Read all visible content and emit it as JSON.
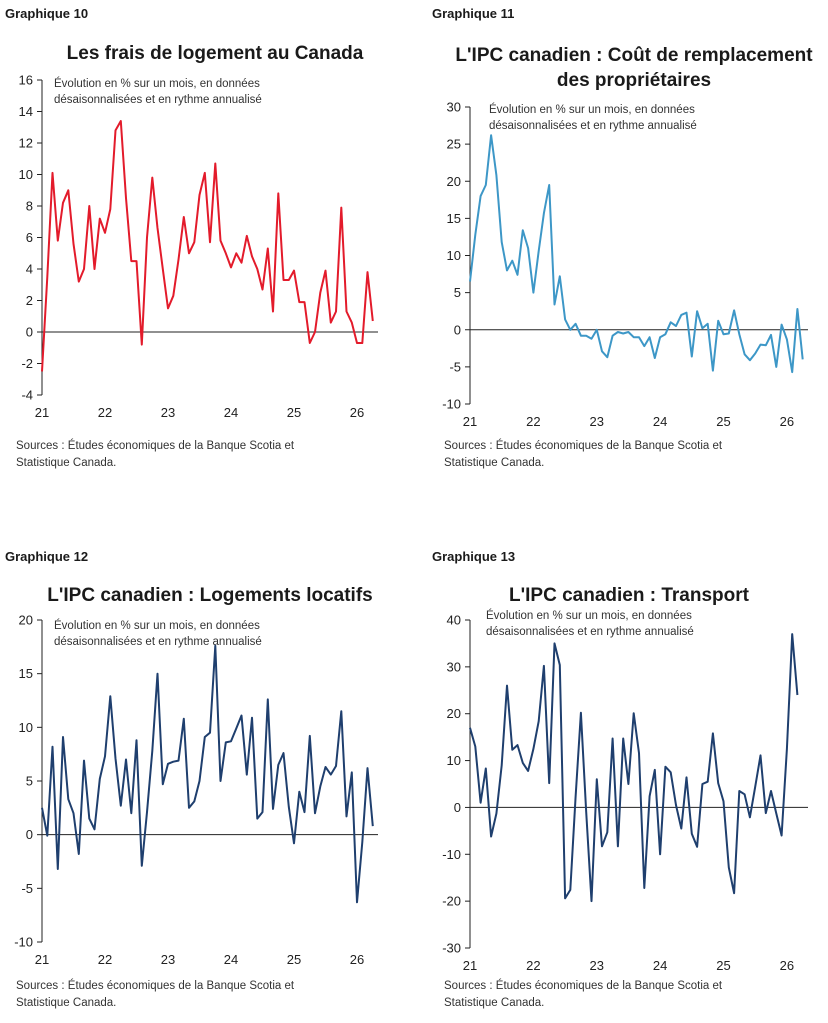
{
  "charts": [
    {
      "graphique_label": "Graphique 10",
      "title": "Les frais de logement au Canada",
      "note": "Évolution en % sur un mois, en données désaisonnalisées et en rythme annualisé",
      "source": "Sources : Études économiques de la Banque Scotia et Statistique Canada.",
      "color": "#e31b2b"
    },
    {
      "graphique_label": "Graphique 11",
      "title": "L'IPC canadien : Coût de remplacement des propriétaires",
      "note": "Évolution en % sur un mois, en données désaisonnalisées et en rythme annualisé",
      "source": "Sources : Études économiques de la Banque Scotia et Statistique Canada.",
      "color": "#3d97c7"
    },
    {
      "graphique_label": "Graphique 12",
      "title": "L'IPC canadien : Logements locatifs",
      "note": "Évolution en % sur un mois, en données désaisonnalisées et en rythme annualisé",
      "source": "Sources : Études économiques de la Banque Scotia et Statistique Canada.",
      "color": "#1f3f6e"
    },
    {
      "graphique_label": "Graphique 13",
      "title": "L'IPC canadien : Transport",
      "note": "Évolution en % sur un mois, en données désaisonnalisées et en rythme annualisé",
      "source": "Sources : Études économiques de la Banque Scotia et Statistique Canada.",
      "color": "#1f3f6e"
    }
  ],
  "chart_data": [
    {
      "type": "line",
      "title": "Les frais de logement au Canada",
      "ylim": [
        -4,
        16
      ],
      "yticks": [
        -4,
        -2,
        0,
        2,
        4,
        6,
        8,
        10,
        12,
        14,
        16
      ],
      "xticks": [
        {
          "label": "21",
          "x": 0
        },
        {
          "label": "22",
          "x": 12
        },
        {
          "label": "23",
          "x": 24
        },
        {
          "label": "24",
          "x": 36
        },
        {
          "label": "25",
          "x": 48
        },
        {
          "label": "26",
          "x": 60
        }
      ],
      "xlim": [
        0,
        64
      ],
      "x_start": 0,
      "grid": false,
      "series": [
        {
          "values": [
            -2.5,
            3.5,
            10.1,
            5.8,
            8.2,
            9.0,
            5.6,
            3.2,
            4.0,
            8.0,
            4.0,
            7.2,
            6.3,
            7.8,
            12.8,
            13.4,
            8.5,
            4.5,
            4.5,
            -0.8,
            6.0,
            9.8,
            6.6,
            4.0,
            1.5,
            2.3,
            4.6,
            7.3,
            5.0,
            5.7,
            8.7,
            10.1,
            5.7,
            10.7,
            5.8,
            5.0,
            4.1,
            5.0,
            4.4,
            6.1,
            4.8,
            4.0,
            2.7,
            5.3,
            1.3,
            8.8,
            3.3,
            3.3,
            3.9,
            1.9,
            1.9,
            -0.7,
            0.0,
            2.5,
            3.9,
            0.6,
            1.3,
            7.9,
            1.3,
            0.6,
            -0.7,
            -0.7,
            3.8,
            0.7
          ]
        }
      ]
    },
    {
      "type": "line",
      "title": "L'IPC canadien : Coût de remplacement des propriétaires",
      "ylim": [
        -10,
        30
      ],
      "yticks": [
        -10,
        -5,
        0,
        5,
        10,
        15,
        20,
        25,
        30
      ],
      "xticks": [
        {
          "label": "21",
          "x": 0
        },
        {
          "label": "22",
          "x": 12
        },
        {
          "label": "23",
          "x": 24
        },
        {
          "label": "24",
          "x": 36
        },
        {
          "label": "25",
          "x": 48
        },
        {
          "label": "26",
          "x": 60
        }
      ],
      "xlim": [
        0,
        64
      ],
      "x_start": 0,
      "grid": false,
      "series": [
        {
          "values": [
            6.5,
            12.8,
            18.0,
            19.5,
            26.2,
            20.8,
            11.8,
            8.0,
            9.3,
            7.4,
            13.4,
            11.0,
            5.0,
            10.6,
            15.7,
            19.5,
            3.4,
            7.2,
            1.4,
            0.0,
            0.8,
            -0.8,
            -0.8,
            -1.2,
            0.0,
            -2.9,
            -3.7,
            -0.8,
            -0.3,
            -0.5,
            -0.3,
            -1.0,
            -1.0,
            -2.2,
            -1.0,
            -3.8,
            -1.0,
            -0.6,
            1.0,
            0.5,
            2.0,
            2.3,
            -3.6,
            2.5,
            0.2,
            0.8,
            -5.5,
            1.2,
            -0.6,
            -0.5,
            2.6,
            -0.6,
            -3.3,
            -4.1,
            -3.2,
            -2.0,
            -2.1,
            -0.7,
            -5.0,
            0.7,
            -1.3,
            -5.7,
            2.8,
            -4.0
          ]
        }
      ]
    },
    {
      "type": "line",
      "title": "L'IPC canadien : Logements locatifs",
      "ylim": [
        -10,
        20
      ],
      "yticks": [
        -10,
        -5,
        0,
        5,
        10,
        15,
        20
      ],
      "xticks": [
        {
          "label": "21",
          "x": 0
        },
        {
          "label": "22",
          "x": 12
        },
        {
          "label": "23",
          "x": 24
        },
        {
          "label": "24",
          "x": 36
        },
        {
          "label": "25",
          "x": 48
        },
        {
          "label": "26",
          "x": 60
        }
      ],
      "xlim": [
        0,
        64
      ],
      "x_start": 0,
      "grid": false,
      "series": [
        {
          "values": [
            2.5,
            -0.1,
            8.2,
            -3.2,
            9.1,
            3.3,
            2.0,
            -1.8,
            6.9,
            1.5,
            0.5,
            5.2,
            7.3,
            12.9,
            7.1,
            2.7,
            7.0,
            2.0,
            8.8,
            -2.9,
            2.1,
            7.8,
            15.0,
            4.7,
            6.6,
            6.8,
            6.9,
            10.8,
            2.5,
            3.1,
            5.0,
            9.1,
            9.5,
            17.6,
            5.0,
            8.6,
            8.7,
            9.9,
            11.1,
            5.6,
            10.9,
            1.5,
            2.1,
            12.6,
            2.4,
            6.5,
            7.6,
            2.6,
            -0.8,
            4.0,
            2.1,
            9.2,
            2.0,
            4.5,
            6.3,
            5.6,
            6.4,
            11.5,
            1.7,
            5.8,
            -6.3,
            -0.7,
            6.2,
            0.8
          ]
        }
      ]
    },
    {
      "type": "line",
      "title": "L'IPC canadien : Transport",
      "ylim": [
        -30,
        40
      ],
      "yticks": [
        -30,
        -20,
        -10,
        0,
        10,
        20,
        30,
        40
      ],
      "xticks": [
        {
          "label": "21",
          "x": 0
        },
        {
          "label": "22",
          "x": 12
        },
        {
          "label": "23",
          "x": 24
        },
        {
          "label": "24",
          "x": 36
        },
        {
          "label": "25",
          "x": 48
        },
        {
          "label": "26",
          "x": 60
        }
      ],
      "xlim": [
        0,
        64
      ],
      "x_start": 0,
      "grid": false,
      "series": [
        {
          "values": [
            17.0,
            13.0,
            1.0,
            8.3,
            -6.2,
            -1.3,
            9.0,
            26.0,
            12.3,
            13.3,
            9.5,
            7.8,
            12.5,
            18.4,
            30.2,
            5.2,
            35.0,
            30.4,
            -19.4,
            -17.6,
            2.3,
            20.2,
            -1.0,
            -20.0,
            6.0,
            -8.3,
            -5.3,
            14.7,
            -8.3,
            14.7,
            5.0,
            20.1,
            11.6,
            -17.2,
            2.4,
            8.0,
            -10.0,
            8.7,
            7.5,
            0.5,
            -4.5,
            6.4,
            -5.6,
            -8.4,
            5.0,
            5.5,
            15.8,
            5.2,
            1.3,
            -12.8,
            -18.3,
            3.5,
            2.8,
            -2.1,
            4.4,
            11.1,
            -1.2,
            3.5,
            -1.3,
            -6.0,
            12.5,
            37.0,
            24.0
          ]
        }
      ]
    }
  ]
}
